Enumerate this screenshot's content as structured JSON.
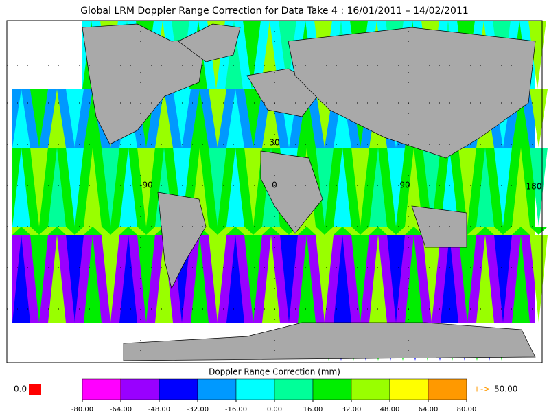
{
  "title": "Global LRM Doppler Range Correction for Data Take 4 : 16/01/2011 – 14/02/2011",
  "map": {
    "grid_labels": [
      "30",
      "-90",
      "0",
      "90",
      "180"
    ]
  },
  "colorbar": {
    "title": "Doppler Range Correction (mm)",
    "ticks": [
      {
        "value": -80,
        "label": "-80.00"
      },
      {
        "value": -64,
        "label": "-64.00"
      },
      {
        "value": -48,
        "label": "-48.00"
      },
      {
        "value": -32,
        "label": "-32.00"
      },
      {
        "value": -16,
        "label": "-16.00"
      },
      {
        "value": 0,
        "label": "0.00"
      },
      {
        "value": 16,
        "label": "16.00"
      },
      {
        "value": 32,
        "label": "32.00"
      },
      {
        "value": 48,
        "label": "48.00"
      },
      {
        "value": 64,
        "label": "64.00"
      },
      {
        "value": 80,
        "label": "80.00"
      }
    ],
    "colors": [
      "#ff00ff",
      "#9900ff",
      "#0000ff",
      "#0099ff",
      "#00ffff",
      "#00ff99",
      "#00ee00",
      "#99ff00",
      "#ffff00",
      "#ff9900"
    ]
  },
  "nodata": {
    "label": "0.0",
    "color": "#ff0000"
  },
  "overflow": {
    "symbol": "+->",
    "value_label": "50.00"
  }
}
